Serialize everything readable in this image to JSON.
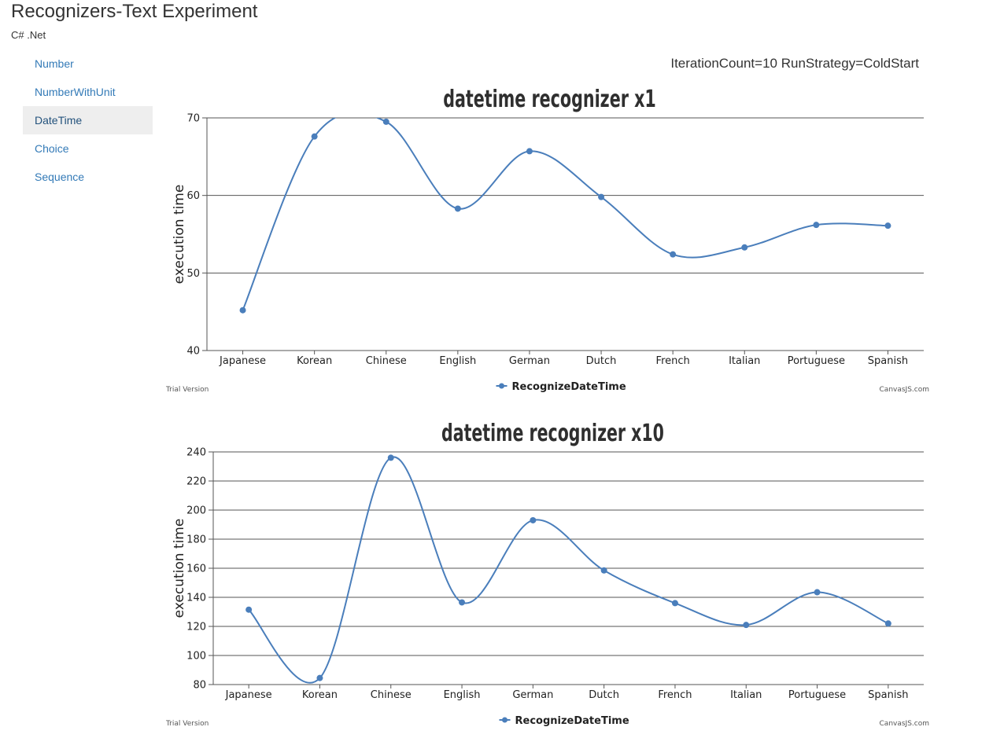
{
  "app": {
    "title": "Recognizers-Text Experiment",
    "subtitle": "C# .Net"
  },
  "sidebar": {
    "items": [
      {
        "label": "Number",
        "active": false
      },
      {
        "label": "NumberWithUnit",
        "active": false
      },
      {
        "label": "DateTime",
        "active": true
      },
      {
        "label": "Choice",
        "active": false
      },
      {
        "label": "Sequence",
        "active": false
      }
    ]
  },
  "run_info": "IterationCount=10 RunStrategy=ColdStart",
  "colors": {
    "series": "#4a7ebb",
    "gridline": "#555555",
    "axis_text": "#222222",
    "title_text": "#2f2f2f"
  },
  "chart_data": [
    {
      "type": "line",
      "title": "datetime recognizer x1",
      "ylabel": "execution time",
      "xlabel": "",
      "categories": [
        "Japanese",
        "Korean",
        "Chinese",
        "English",
        "German",
        "Dutch",
        "French",
        "Italian",
        "Portuguese",
        "Spanish"
      ],
      "series": [
        {
          "name": "RecognizeDateTime",
          "values": [
            45.2,
            67.6,
            69.5,
            58.3,
            65.7,
            59.8,
            52.4,
            53.3,
            56.2,
            56.1
          ]
        }
      ],
      "ylim": [
        40,
        70
      ],
      "yticks": [
        40,
        50,
        60,
        70
      ],
      "grid": true,
      "legend": "bottom-center",
      "watermark_left": "Trial Version",
      "watermark_right": "CanvasJS.com"
    },
    {
      "type": "line",
      "title": "datetime recognizer x10",
      "ylabel": "execution time",
      "xlabel": "",
      "categories": [
        "Japanese",
        "Korean",
        "Chinese",
        "English",
        "German",
        "Dutch",
        "French",
        "Italian",
        "Portuguese",
        "Spanish"
      ],
      "series": [
        {
          "name": "RecognizeDateTime",
          "values": [
            131.5,
            84.5,
            236,
            136.5,
            193,
            158.5,
            136,
            121,
            143.5,
            122
          ]
        }
      ],
      "ylim": [
        80,
        240
      ],
      "yticks": [
        80,
        100,
        120,
        140,
        160,
        180,
        200,
        220,
        240
      ],
      "grid": true,
      "legend": "bottom-center",
      "watermark_left": "Trial Version",
      "watermark_right": "CanvasJS.com"
    }
  ]
}
